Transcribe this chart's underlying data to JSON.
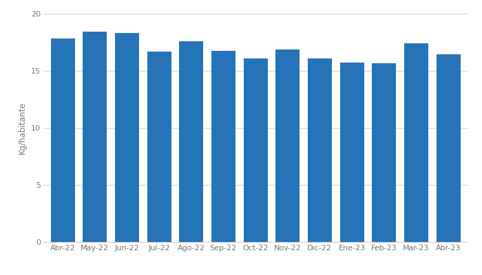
{
  "categories": [
    "Abr-22",
    "May-22",
    "Jun-22",
    "Jul-22",
    "Ago-22",
    "Sep-22",
    "Oct-22",
    "Nov-22",
    "Dic-22",
    "Ene-23",
    "Feb-23",
    "Mar-23",
    "Abr-23"
  ],
  "values": [
    17.85,
    18.45,
    18.3,
    16.7,
    17.6,
    16.75,
    16.1,
    16.85,
    16.1,
    15.7,
    15.65,
    17.4,
    16.45
  ],
  "bar_color": "#2773b8",
  "ylabel": "Kg/habitante",
  "ylim": [
    0,
    20
  ],
  "yticks": [
    0,
    5,
    10,
    15,
    20
  ],
  "background_color": "#ffffff",
  "grid_color": "#d0d0d0",
  "bar_width": 0.75,
  "tick_fontsize": 8.0,
  "ylabel_fontsize": 8.5
}
